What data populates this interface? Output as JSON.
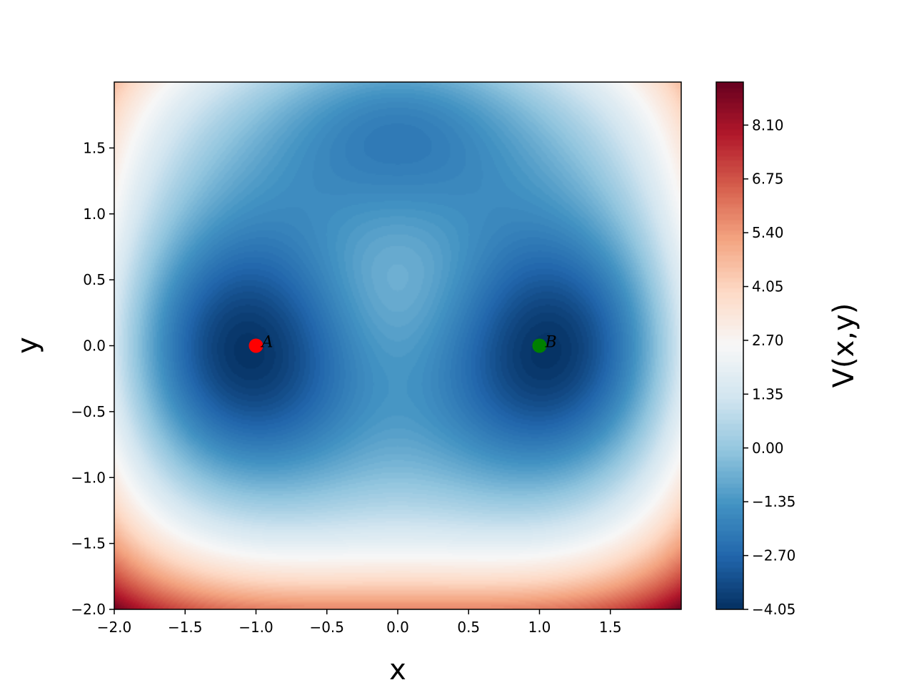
{
  "chart_data": {
    "type": "heatmap",
    "subtype": "filled-contour",
    "title": "",
    "xlabel": "x",
    "ylabel": "y",
    "xlim": [
      -2.0,
      2.0
    ],
    "ylim": [
      -2.0,
      2.0
    ],
    "x_ticks": [
      "−2.0",
      "−1.5",
      "−1.0",
      "−0.5",
      "0.0",
      "0.5",
      "1.0",
      "1.5"
    ],
    "x_tick_values": [
      -2.0,
      -1.5,
      -1.0,
      -0.5,
      0.0,
      0.5,
      1.0,
      1.5
    ],
    "y_ticks": [
      "−2.0",
      "−1.5",
      "−1.0",
      "−0.5",
      "0.0",
      "0.5",
      "1.0",
      "1.5"
    ],
    "y_tick_values": [
      -2.0,
      -1.5,
      -1.0,
      -0.5,
      0.0,
      0.5,
      1.0,
      1.5
    ],
    "colorbar": {
      "label": "V(x,y)",
      "colormap": "RdBu_r",
      "range": [
        -4.05,
        9.18
      ],
      "ticks": [
        "−4.05",
        "−2.70",
        "−1.35",
        "0.00",
        "1.35",
        "2.70",
        "4.05",
        "5.40",
        "6.75",
        "8.10"
      ],
      "tick_values": [
        -4.05,
        -2.7,
        -1.35,
        0.0,
        1.35,
        2.7,
        4.05,
        5.4,
        6.75,
        8.1
      ]
    },
    "points": [
      {
        "label": "A",
        "x": -1.0,
        "y": 0.0,
        "color": "#ff0000"
      },
      {
        "label": "B",
        "x": 1.0,
        "y": 0.0,
        "color": "#008000"
      }
    ],
    "grid": false,
    "legend": "none"
  }
}
